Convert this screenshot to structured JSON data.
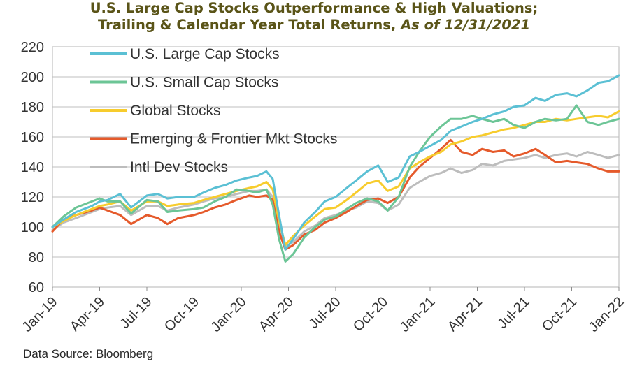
{
  "title": {
    "line1": "U.S. Large Cap Stocks Outperformance & High Valuations;",
    "line2": "Trailing & Calendar Year Total Returns,",
    "line2_italic": "As of 12/31/2021"
  },
  "source": "Data Source: Bloomberg",
  "chart_data": {
    "type": "line",
    "title": "U.S. Large Cap Stocks Outperformance & High Valuations; Trailing & Calendar Year Total Returns, As of 12/31/2021",
    "xlabel": "",
    "ylabel": "",
    "ylim": [
      60,
      220
    ],
    "yticks": [
      60,
      80,
      100,
      120,
      140,
      160,
      180,
      200,
      220
    ],
    "xlim": [
      0,
      36
    ],
    "xticks": [
      0,
      3,
      6,
      9,
      12,
      15,
      18,
      21,
      24,
      27,
      30,
      33,
      36
    ],
    "xtick_labels": [
      "Jan-19",
      "Apr-19",
      "Jul-19",
      "Oct-19",
      "Jan-20",
      "Apr-20",
      "Jul-20",
      "Oct-20",
      "Jan-21",
      "Apr-21",
      "Jul-21",
      "Oct-21",
      "Jan-22"
    ],
    "x_unit": "months since Jan-2019",
    "grid": true,
    "legend_position": "top-left",
    "series": [
      {
        "name": "U.S. Large Cap Stocks",
        "color": "#5bc0d4",
        "x": [
          0,
          0.7,
          1.5,
          2.5,
          3.0,
          3.5,
          4.3,
          5.0,
          6.0,
          6.7,
          7.3,
          8.0,
          9.0,
          9.6,
          10.3,
          11.0,
          11.7,
          12.5,
          13.0,
          13.6,
          14.0,
          14.4,
          14.8,
          15.3,
          16.0,
          16.7,
          17.3,
          18.0,
          18.7,
          19.3,
          20.0,
          20.7,
          21.3,
          22.0,
          22.7,
          23.3,
          24.0,
          24.7,
          25.3,
          26.0,
          26.7,
          27.3,
          28.0,
          28.7,
          29.3,
          30.0,
          30.7,
          31.3,
          32.0,
          32.7,
          33.3,
          34.0,
          34.7,
          35.3,
          36.0
        ],
        "y": [
          100,
          105,
          110,
          114,
          117,
          118,
          122,
          113,
          121,
          122,
          119,
          120,
          120,
          123,
          126,
          128,
          131,
          133,
          134,
          137,
          132,
          108,
          85,
          92,
          103,
          110,
          117,
          120,
          126,
          131,
          137,
          141,
          130,
          133,
          147,
          150,
          154,
          158,
          164,
          167,
          170,
          172,
          175,
          177,
          180,
          181,
          186,
          184,
          188,
          189,
          187,
          191,
          196,
          197,
          201
        ]
      },
      {
        "name": "U.S. Small Cap Stocks",
        "color": "#6cc596",
        "x": [
          0,
          0.7,
          1.5,
          2.5,
          3.0,
          3.5,
          4.3,
          5.0,
          6.0,
          6.7,
          7.3,
          8.0,
          9.0,
          9.6,
          10.3,
          11.0,
          11.7,
          12.5,
          13.0,
          13.6,
          14.0,
          14.4,
          14.8,
          15.3,
          16.0,
          16.7,
          17.3,
          18.0,
          18.7,
          19.3,
          20.0,
          20.7,
          21.3,
          22.0,
          22.7,
          23.3,
          24.0,
          24.7,
          25.3,
          26.0,
          26.7,
          27.3,
          28.0,
          28.7,
          29.3,
          30.0,
          30.7,
          31.3,
          32.0,
          32.7,
          33.3,
          34.0,
          34.7,
          35.3,
          36.0
        ],
        "y": [
          100,
          107,
          113,
          117,
          119,
          117,
          117,
          109,
          118,
          117,
          110,
          111,
          112,
          113,
          117,
          120,
          125,
          124,
          123,
          125,
          115,
          92,
          77,
          82,
          93,
          100,
          105,
          107,
          112,
          116,
          119,
          117,
          111,
          120,
          140,
          150,
          160,
          167,
          172,
          172,
          174,
          172,
          170,
          172,
          168,
          166,
          170,
          172,
          171,
          172,
          181,
          170,
          168,
          170,
          172
        ]
      },
      {
        "name": "Global Stocks",
        "color": "#f7cc2d",
        "x": [
          0,
          0.7,
          1.5,
          2.5,
          3.0,
          3.5,
          4.3,
          5.0,
          6.0,
          6.7,
          7.3,
          8.0,
          9.0,
          9.6,
          10.3,
          11.0,
          11.7,
          12.5,
          13.0,
          13.6,
          14.0,
          14.4,
          14.8,
          15.3,
          16.0,
          16.7,
          17.3,
          18.0,
          18.7,
          19.3,
          20.0,
          20.7,
          21.3,
          22.0,
          22.7,
          23.3,
          24.0,
          24.7,
          25.3,
          26.0,
          26.7,
          27.3,
          28.0,
          28.7,
          29.3,
          30.0,
          30.7,
          31.3,
          32.0,
          32.7,
          33.3,
          34.0,
          34.7,
          35.3,
          36.0
        ],
        "y": [
          100,
          104,
          108,
          112,
          114,
          115,
          117,
          111,
          117,
          117,
          114,
          115,
          116,
          118,
          120,
          122,
          124,
          126,
          127,
          130,
          125,
          104,
          88,
          94,
          101,
          107,
          112,
          113,
          118,
          123,
          129,
          131,
          124,
          127,
          139,
          143,
          147,
          150,
          155,
          157,
          160,
          161,
          163,
          165,
          166,
          168,
          170,
          170,
          172,
          171,
          172,
          173,
          174,
          173,
          177
        ]
      },
      {
        "name": "Emerging & Frontier Mkt Stocks",
        "color": "#e55a2b",
        "x": [
          0,
          0.7,
          1.5,
          2.5,
          3.0,
          3.5,
          4.3,
          5.0,
          6.0,
          6.7,
          7.3,
          8.0,
          9.0,
          9.6,
          10.3,
          11.0,
          11.7,
          12.5,
          13.0,
          13.6,
          14.0,
          14.4,
          14.8,
          15.3,
          16.0,
          16.7,
          17.3,
          18.0,
          18.7,
          19.3,
          20.0,
          20.7,
          21.3,
          22.0,
          22.7,
          23.3,
          24.0,
          24.7,
          25.3,
          26.0,
          26.7,
          27.3,
          28.0,
          28.7,
          29.3,
          30.0,
          30.7,
          31.3,
          32.0,
          32.7,
          33.3,
          34.0,
          34.7,
          35.3,
          36.0
        ],
        "y": [
          97,
          105,
          108,
          111,
          113,
          111,
          108,
          102,
          108,
          106,
          102,
          106,
          108,
          110,
          113,
          115,
          118,
          121,
          120,
          121,
          118,
          97,
          85,
          88,
          95,
          98,
          103,
          106,
          110,
          114,
          118,
          119,
          116,
          120,
          133,
          140,
          146,
          152,
          158,
          150,
          148,
          152,
          150,
          151,
          147,
          149,
          152,
          148,
          143,
          144,
          143,
          142,
          139,
          137,
          137
        ]
      },
      {
        "name": "Intl Dev Stocks",
        "color": "#bdbdbd",
        "x": [
          0,
          0.7,
          1.5,
          2.5,
          3.0,
          3.5,
          4.3,
          5.0,
          6.0,
          6.7,
          7.3,
          8.0,
          9.0,
          9.6,
          10.3,
          11.0,
          11.7,
          12.5,
          13.0,
          13.6,
          14.0,
          14.4,
          14.8,
          15.3,
          16.0,
          16.7,
          17.3,
          18.0,
          18.7,
          19.3,
          20.0,
          20.7,
          21.3,
          22.0,
          22.7,
          23.3,
          24.0,
          24.7,
          25.3,
          26.0,
          26.7,
          27.3,
          28.0,
          28.7,
          29.3,
          30.0,
          30.7,
          31.3,
          32.0,
          32.7,
          33.3,
          34.0,
          34.7,
          35.3,
          36.0
        ],
        "y": [
          98,
          103,
          106,
          110,
          112,
          113,
          114,
          108,
          114,
          114,
          111,
          113,
          115,
          117,
          119,
          120,
          122,
          124,
          124,
          125,
          120,
          100,
          87,
          90,
          97,
          101,
          106,
          108,
          111,
          113,
          117,
          116,
          111,
          115,
          126,
          130,
          134,
          136,
          139,
          136,
          138,
          142,
          141,
          144,
          145,
          146,
          148,
          146,
          148,
          149,
          147,
          150,
          148,
          146,
          148
        ]
      }
    ]
  }
}
